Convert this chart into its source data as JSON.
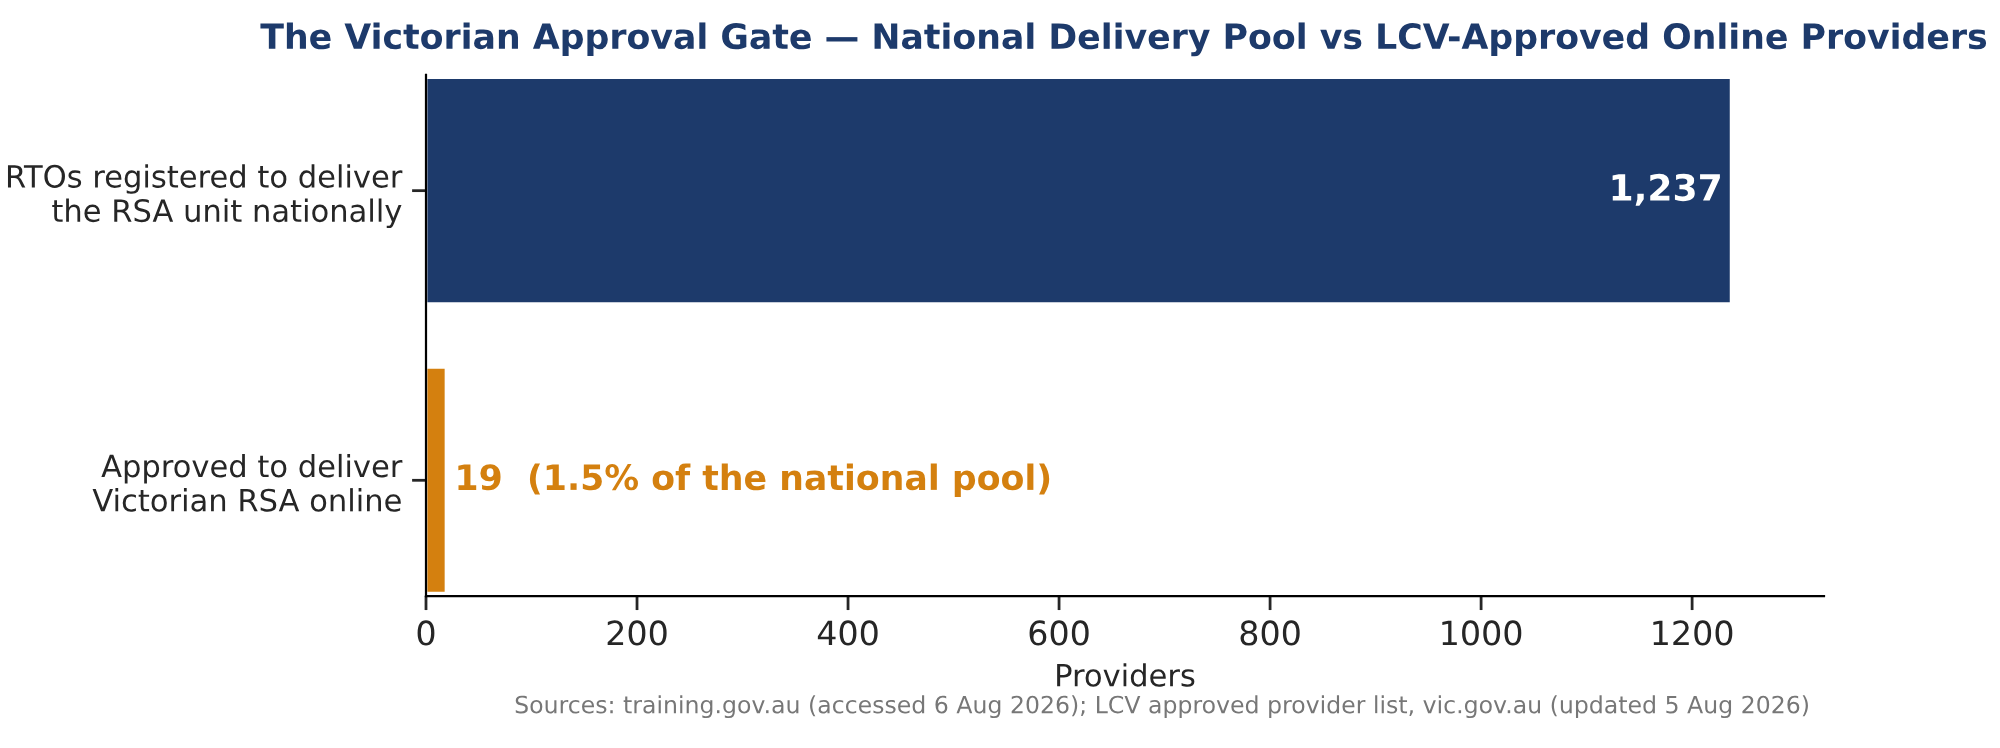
{
  "chart_data": {
    "type": "bar",
    "orientation": "horizontal",
    "title": "The Victorian Approval Gate — National Delivery Pool vs LCV-Approved Online Providers",
    "categories": [
      "RTOs registered to deliver\nthe RSA unit nationally",
      "Approved to deliver\nVictorian RSA online"
    ],
    "values": [
      1237,
      19
    ],
    "colors": [
      "#1d3a6b",
      "#d4800f"
    ],
    "value_labels": [
      "1,237",
      "19  (1.5% of the national pool)"
    ],
    "xlabel": "Providers",
    "xlim": [
      0,
      1325
    ],
    "xticks": [
      0,
      200,
      400,
      600,
      800,
      1000,
      1200
    ],
    "grid": false,
    "annotations": [
      "Sources: training.gov.au (accessed 6 Aug 2026); LCV approved provider list, vic.gov.au (updated 5 Aug 2026)"
    ]
  }
}
